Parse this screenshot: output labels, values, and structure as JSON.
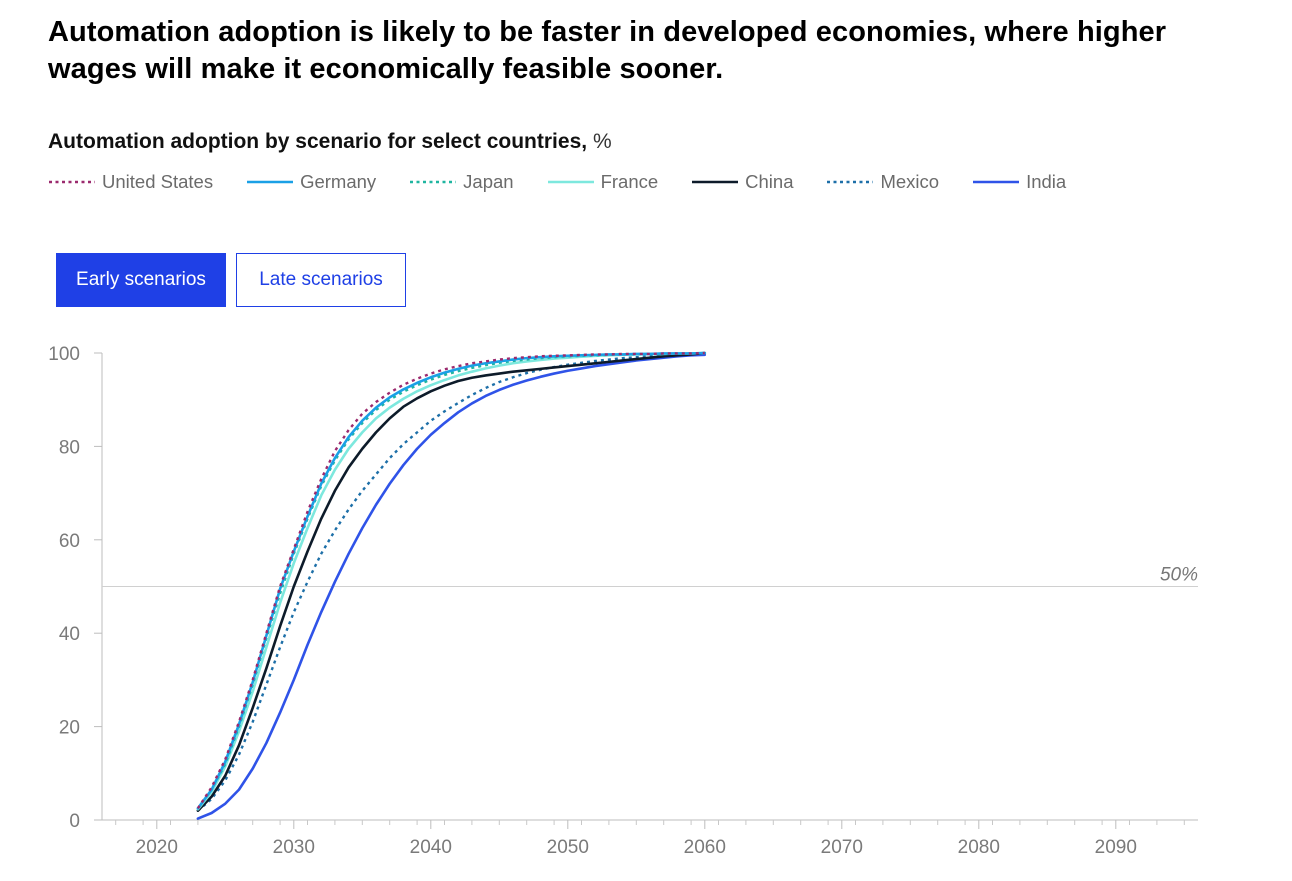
{
  "headline": "Automation adoption is likely to be faster in developed economies, where higher wages will make it economically feasible sooner.",
  "subtitle": {
    "bold": "Automation adoption by scenario for select countries,",
    "unit": "%"
  },
  "toggle": {
    "early_label": "Early scenarios",
    "late_label": "Late scenarios",
    "selected": "early"
  },
  "chart_data": {
    "type": "line",
    "title": "Automation adoption by scenario for select countries, %",
    "xlim": [
      2016,
      2096
    ],
    "ylim": [
      0,
      100
    ],
    "x_ticks": [
      2020,
      2030,
      2040,
      2050,
      2060,
      2070,
      2080,
      2090
    ],
    "y_ticks": [
      0,
      20,
      40,
      60,
      80,
      100
    ],
    "reference_line": {
      "y": 50,
      "label": "50%"
    },
    "legend_position": "top",
    "x": [
      2023,
      2024,
      2025,
      2026,
      2027,
      2028,
      2029,
      2030,
      2031,
      2032,
      2033,
      2034,
      2035,
      2036,
      2037,
      2038,
      2039,
      2040,
      2041,
      2042,
      2043,
      2044,
      2045,
      2046,
      2047,
      2048,
      2049,
      2050,
      2051,
      2052,
      2053,
      2054,
      2055,
      2056,
      2057,
      2058,
      2059,
      2060
    ],
    "series": [
      {
        "name": "United States",
        "color": "#9b2a6e",
        "dash": "dotted",
        "values": [
          2.5,
          7,
          13,
          21,
          30,
          40,
          50,
          58,
          66,
          73,
          79,
          83.5,
          87,
          89.5,
          91.5,
          93.2,
          94.5,
          95.6,
          96.5,
          97.2,
          97.8,
          98.2,
          98.6,
          98.9,
          99.1,
          99.3,
          99.4,
          99.5,
          99.6,
          99.7,
          99.7,
          99.8,
          99.8,
          99.8,
          99.9,
          99.9,
          99.9,
          100
        ]
      },
      {
        "name": "Germany",
        "color": "#1aa0e6",
        "dash": "solid",
        "values": [
          2.5,
          6.5,
          12.5,
          20.5,
          29.5,
          39.5,
          49.5,
          57.5,
          65,
          72,
          77.5,
          82,
          85.5,
          88.3,
          90.5,
          92.2,
          93.6,
          94.8,
          95.8,
          96.6,
          97.3,
          97.8,
          98.2,
          98.6,
          98.9,
          99.1,
          99.3,
          99.4,
          99.5,
          99.6,
          99.7,
          99.7,
          99.8,
          99.8,
          99.9,
          99.9,
          99.9,
          100
        ]
      },
      {
        "name": "Japan",
        "color": "#1fb5a0",
        "dash": "dotted",
        "values": [
          2.5,
          6.5,
          12,
          20,
          29,
          39,
          48.5,
          57,
          64.5,
          71.5,
          77,
          81.5,
          85,
          87.8,
          90,
          91.7,
          93.1,
          94.3,
          95.3,
          96.1,
          96.8,
          97.4,
          97.9,
          98.3,
          98.6,
          98.9,
          99.1,
          99.3,
          99.4,
          99.5,
          99.6,
          99.7,
          99.7,
          99.8,
          99.8,
          99.9,
          99.9,
          100
        ]
      },
      {
        "name": "France",
        "color": "#7de8de",
        "dash": "solid",
        "values": [
          2.3,
          6,
          11.5,
          19,
          27.5,
          37,
          46.5,
          55,
          62.5,
          69.5,
          75,
          79.5,
          83,
          86,
          88.3,
          90.2,
          91.8,
          93.1,
          94.2,
          95.2,
          96,
          96.7,
          97.3,
          97.8,
          98.2,
          98.5,
          98.8,
          99,
          99.2,
          99.4,
          99.5,
          99.6,
          99.7,
          99.8,
          99.8,
          99.9,
          99.9,
          100
        ]
      },
      {
        "name": "China",
        "color": "#0d1b2a",
        "dash": "solid",
        "values": [
          2,
          5,
          9.5,
          16,
          24,
          32.5,
          41.5,
          50,
          57.5,
          64.5,
          70.5,
          75.5,
          79.5,
          83,
          86,
          88.5,
          90.3,
          91.8,
          93,
          94,
          94.7,
          95.2,
          95.6,
          96,
          96.3,
          96.6,
          96.9,
          97.2,
          97.5,
          97.8,
          98.1,
          98.4,
          98.7,
          99,
          99.3,
          99.5,
          99.7,
          100
        ]
      },
      {
        "name": "Mexico",
        "color": "#1d6fa8",
        "dash": "dotted",
        "values": [
          2,
          4.5,
          8.5,
          14,
          21,
          29,
          37,
          44.5,
          51,
          57,
          62,
          66.5,
          70.5,
          74,
          77.5,
          80.5,
          83,
          85.5,
          87.5,
          89.3,
          91,
          92.5,
          93.8,
          94.8,
          95.7,
          96.4,
          97,
          97.5,
          97.9,
          98.3,
          98.6,
          98.9,
          99.1,
          99.3,
          99.5,
          99.6,
          99.8,
          100
        ]
      },
      {
        "name": "India",
        "color": "#2f53e8",
        "dash": "solid",
        "values": [
          0.3,
          1.5,
          3.5,
          6.5,
          11,
          16.5,
          23,
          30,
          37.5,
          44.5,
          51,
          57,
          62.5,
          67.5,
          72,
          76,
          79.5,
          82.5,
          85,
          87.3,
          89.2,
          90.8,
          92.1,
          93.2,
          94.1,
          94.9,
          95.6,
          96.2,
          96.7,
          97.2,
          97.6,
          98,
          98.4,
          98.7,
          99,
          99.3,
          99.5,
          99.6
        ]
      }
    ]
  }
}
